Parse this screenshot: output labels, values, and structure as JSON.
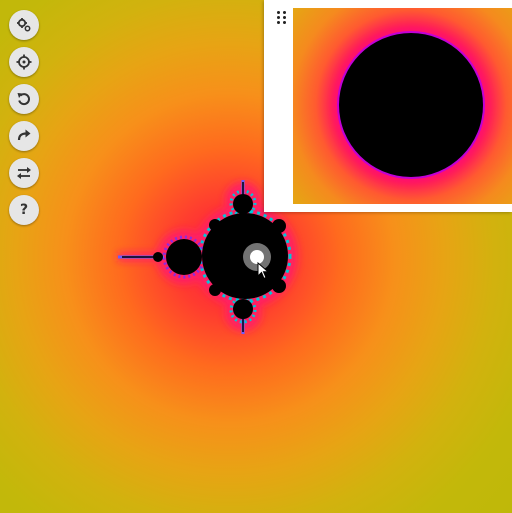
{
  "toolbar": {
    "items": [
      {
        "icon": "gears-icon",
        "label": "settings"
      },
      {
        "icon": "crosshair-icon",
        "label": "center"
      },
      {
        "icon": "undo-icon",
        "label": "undo"
      },
      {
        "icon": "redo-icon",
        "label": "redo"
      },
      {
        "icon": "swap-icon",
        "label": "swap"
      },
      {
        "icon": "help-icon",
        "label": "help",
        "text": "?"
      }
    ]
  },
  "colors": {
    "set_interior": "#000000",
    "edge": "#ff1a4a",
    "inner_glow": "#ff6a1e",
    "outer": "#bcb808",
    "boundary_cyan": "#00c8d8",
    "boundary_violet": "#8a2be2",
    "panel_bg": "#ffffff",
    "toolbar_button": "#e6e6e6"
  }
}
